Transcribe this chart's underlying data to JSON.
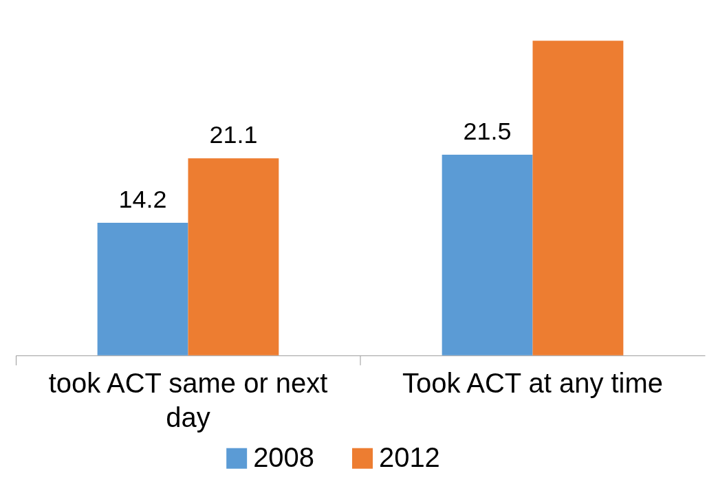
{
  "chart_data": {
    "type": "bar",
    "categories": [
      "took ACT same or next day",
      "Took ACT at any time"
    ],
    "series": [
      {
        "name": "2008",
        "color": "#5b9bd5",
        "values": [
          14.2,
          21.5
        ],
        "value_labels": [
          "14.2",
          "21.5"
        ]
      },
      {
        "name": "2012",
        "color": "#ed7d31",
        "values": [
          21.1,
          33.7
        ],
        "value_labels": [
          "21.1",
          null
        ]
      }
    ],
    "ylim": [
      0,
      33.7
    ],
    "legend": "bottom",
    "tick_labels": "x"
  }
}
